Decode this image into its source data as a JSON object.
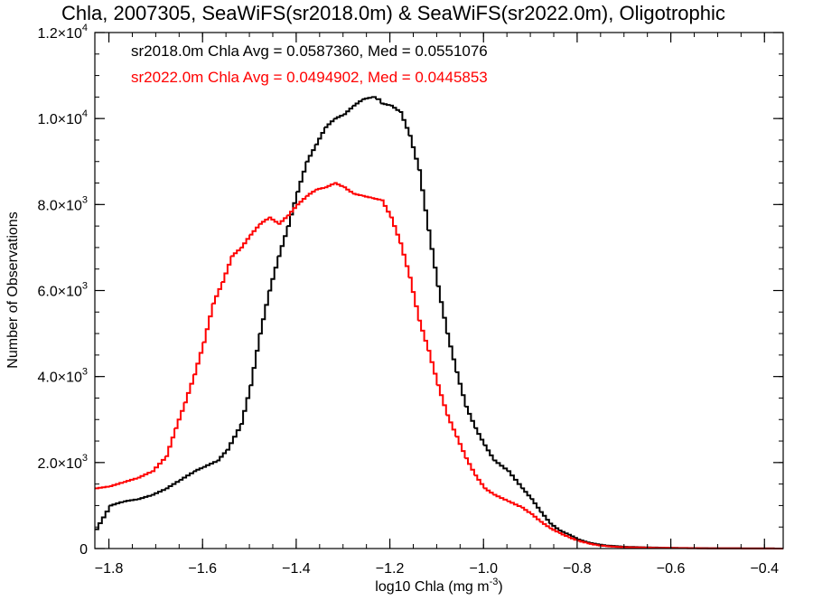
{
  "chart_data": {
    "type": "line",
    "title": "Chla, 2007305, SeaWiFS(sr2018.0m) & SeaWiFS(sr2022.0m), Oligotrophic",
    "xlabel_main": "log10 Chla (mg m",
    "xlabel_sup": "-3",
    "xlabel_end": ")",
    "ylabel": "Number of Observations",
    "xlim": [
      -1.83,
      -0.36
    ],
    "ylim": [
      0,
      12000
    ],
    "x_ticks": [
      -1.8,
      -1.6,
      -1.4,
      -1.2,
      -1.0,
      -0.8,
      -0.6,
      -0.4
    ],
    "x_tick_labels": [
      "−1.8",
      "−1.6",
      "−1.4",
      "−1.2",
      "−1.0",
      "−0.8",
      "−0.6",
      "−0.4"
    ],
    "y_ticks": [
      0,
      2000,
      4000,
      6000,
      8000,
      10000,
      12000
    ],
    "y_tick_labels": [
      {
        "base": "0",
        "exp": ""
      },
      {
        "base": "2.0×10",
        "exp": "3"
      },
      {
        "base": "4.0×10",
        "exp": "3"
      },
      {
        "base": "6.0×10",
        "exp": "3"
      },
      {
        "base": "8.0×10",
        "exp": "3"
      },
      {
        "base": "1.0×10",
        "exp": "4"
      },
      {
        "base": "1.2×10",
        "exp": "4"
      }
    ],
    "annotations": [
      {
        "text": "sr2018.0m Chla Avg = 0.0587360, Med = 0.0551076",
        "color": "#000000"
      },
      {
        "text": "sr2022.0m Chla Avg = 0.0494902, Med = 0.0445853",
        "color": "#ff0000"
      }
    ],
    "series": [
      {
        "color": "#000000",
        "x": [
          -1.83,
          -1.8,
          -1.77,
          -1.74,
          -1.71,
          -1.68,
          -1.65,
          -1.62,
          -1.6,
          -1.57,
          -1.55,
          -1.52,
          -1.5,
          -1.48,
          -1.46,
          -1.44,
          -1.42,
          -1.4,
          -1.38,
          -1.36,
          -1.34,
          -1.32,
          -1.3,
          -1.28,
          -1.26,
          -1.24,
          -1.23,
          -1.22,
          -1.2,
          -1.18,
          -1.16,
          -1.14,
          -1.12,
          -1.1,
          -1.08,
          -1.06,
          -1.04,
          -1.02,
          -1.0,
          -0.98,
          -0.95,
          -0.92,
          -0.9,
          -0.88,
          -0.86,
          -0.84,
          -0.82,
          -0.8,
          -0.78,
          -0.76,
          -0.74,
          -0.72,
          -0.7,
          -0.65,
          -0.6,
          -0.55,
          -0.5,
          -0.45,
          -0.4,
          -0.36
        ],
        "y": [
          450,
          1000,
          1100,
          1150,
          1250,
          1400,
          1600,
          1800,
          1900,
          2050,
          2300,
          2900,
          3800,
          5000,
          6000,
          6800,
          7500,
          8300,
          9000,
          9400,
          9800,
          10000,
          10100,
          10300,
          10450,
          10500,
          10450,
          10350,
          10300,
          10150,
          9600,
          8800,
          7400,
          6100,
          5000,
          4100,
          3300,
          2800,
          2400,
          2050,
          1800,
          1400,
          1150,
          850,
          580,
          420,
          320,
          210,
          140,
          100,
          70,
          55,
          40,
          25,
          15,
          10,
          5,
          3,
          2,
          0
        ]
      },
      {
        "color": "#ff0000",
        "x": [
          -1.83,
          -1.8,
          -1.77,
          -1.74,
          -1.71,
          -1.68,
          -1.66,
          -1.64,
          -1.62,
          -1.6,
          -1.58,
          -1.56,
          -1.54,
          -1.52,
          -1.5,
          -1.48,
          -1.46,
          -1.44,
          -1.42,
          -1.4,
          -1.38,
          -1.36,
          -1.34,
          -1.32,
          -1.3,
          -1.28,
          -1.26,
          -1.24,
          -1.22,
          -1.2,
          -1.18,
          -1.16,
          -1.14,
          -1.12,
          -1.1,
          -1.08,
          -1.06,
          -1.04,
          -1.02,
          -1.0,
          -0.98,
          -0.95,
          -0.92,
          -0.9,
          -0.88,
          -0.86,
          -0.84,
          -0.82,
          -0.8,
          -0.78,
          -0.76,
          -0.74,
          -0.72,
          -0.7,
          -0.65,
          -0.6,
          -0.55,
          -0.5,
          -0.45,
          -0.4,
          -0.36
        ],
        "y": [
          1400,
          1450,
          1550,
          1650,
          1800,
          2150,
          2800,
          3400,
          4050,
          4800,
          5700,
          6200,
          6800,
          7000,
          7300,
          7550,
          7700,
          7550,
          7750,
          8000,
          8200,
          8350,
          8400,
          8500,
          8400,
          8250,
          8200,
          8150,
          8100,
          7700,
          7100,
          6300,
          5300,
          4600,
          3800,
          3100,
          2600,
          2100,
          1700,
          1400,
          1250,
          1100,
          950,
          800,
          620,
          470,
          360,
          260,
          180,
          120,
          80,
          55,
          40,
          30,
          20,
          12,
          8,
          5,
          3,
          2,
          0
        ]
      }
    ]
  }
}
